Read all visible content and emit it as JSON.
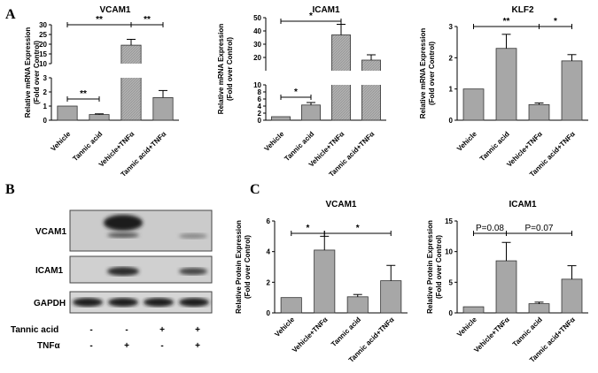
{
  "panel_labels": {
    "A": "A",
    "B": "B",
    "C": "C"
  },
  "colors": {
    "bar": "#a7a7a7",
    "bar_hatch": "#b3b3b3",
    "axis": "#000000",
    "blot_bg": "#c8c8c8"
  },
  "ylabel_line1": "Relative mRNA Expression",
  "ylabel_line2": "(Fold over Control)",
  "ylabel_protein_line1": "Relative Protein Expression",
  "ylabel_protein_line2": "(Fold over Control)",
  "western_blot": {
    "rows": [
      "VCAM1",
      "ICAM1",
      "GAPDH"
    ],
    "treatments": [
      {
        "name": "Tannic acid",
        "values": [
          "-",
          "-",
          "+",
          "+"
        ]
      },
      {
        "name": "TNFα",
        "values": [
          "-",
          "+",
          "-",
          "+"
        ]
      }
    ]
  },
  "chart_data": [
    {
      "id": "vcam1_mrna",
      "type": "bar",
      "title": "VCAM1",
      "categories": [
        "Vehicle",
        "Tannic acid",
        "Vehicle+TNFα",
        "Tannic acid+TNFα"
      ],
      "values": [
        1.0,
        0.4,
        19.5,
        1.6
      ],
      "errors": [
        0,
        0.05,
        3.0,
        0.5
      ],
      "axis_break": true,
      "lower_ylim": [
        0,
        3
      ],
      "upper_ylim": [
        10,
        30
      ],
      "lower_ticks": [
        0,
        1,
        2,
        3
      ],
      "upper_ticks": [
        10,
        15,
        20,
        25,
        30
      ],
      "significance": [
        {
          "from": 0,
          "to": 1,
          "label": "**"
        },
        {
          "from": 0,
          "to": 2,
          "label": "**"
        },
        {
          "from": 2,
          "to": 3,
          "label": "**"
        }
      ]
    },
    {
      "id": "icam1_mrna",
      "type": "bar",
      "title": "ICAM1",
      "categories": [
        "Vehicle",
        "Tannic acid",
        "Vehicle+TNFα",
        "Tannic acid+TNFα"
      ],
      "values": [
        1.0,
        4.3,
        37,
        18
      ],
      "errors": [
        0,
        0.7,
        8,
        4
      ],
      "axis_break": true,
      "lower_ylim": [
        0,
        10
      ],
      "upper_ylim": [
        10,
        50
      ],
      "lower_ticks": [
        0,
        2,
        4,
        6,
        8,
        10
      ],
      "upper_ticks": [
        20,
        30,
        40,
        50
      ],
      "significance": [
        {
          "from": 0,
          "to": 1,
          "label": "*"
        },
        {
          "from": 0,
          "to": 2,
          "label": "*"
        }
      ]
    },
    {
      "id": "klf2_mrna",
      "type": "bar",
      "title": "KLF2",
      "categories": [
        "Vehicle",
        "Tannic acid",
        "Vehicle+TNFα",
        "Tannic acid+TNFα"
      ],
      "values": [
        1.0,
        2.3,
        0.5,
        1.9
      ],
      "errors": [
        0,
        0.45,
        0.05,
        0.2
      ],
      "ylim": [
        0,
        3
      ],
      "ticks": [
        0,
        1,
        2,
        3
      ],
      "significance": [
        {
          "from": 0,
          "to": 2,
          "label": "**"
        },
        {
          "from": 2,
          "to": 3,
          "label": "*"
        }
      ]
    },
    {
      "id": "vcam1_protein",
      "type": "bar",
      "title": "VCAM1",
      "categories": [
        "Vehicle",
        "Vehicle+TNFα",
        "Tannic acid",
        "Tannic acid+TNFα"
      ],
      "values": [
        1.0,
        4.1,
        1.05,
        2.1
      ],
      "errors": [
        0,
        0.9,
        0.15,
        1.0
      ],
      "ylim": [
        0,
        6
      ],
      "ticks": [
        0,
        2,
        4,
        6
      ],
      "significance": [
        {
          "from": 0,
          "to": 1,
          "label": "*"
        },
        {
          "from": 1,
          "to": 3,
          "label": "*"
        }
      ]
    },
    {
      "id": "icam1_protein",
      "type": "bar",
      "title": "ICAM1",
      "categories": [
        "Vehicle",
        "Vehicle+TNFα",
        "Tannic acid",
        "Tannic acid+TNFα"
      ],
      "values": [
        1.0,
        8.5,
        1.5,
        5.5
      ],
      "errors": [
        0,
        3.0,
        0.25,
        2.2
      ],
      "ylim": [
        0,
        15
      ],
      "ticks": [
        0,
        5,
        10,
        15
      ],
      "significance": [
        {
          "from": 0,
          "to": 1,
          "label": "P=0.08"
        },
        {
          "from": 1,
          "to": 3,
          "label": "P=0.07"
        }
      ]
    }
  ]
}
